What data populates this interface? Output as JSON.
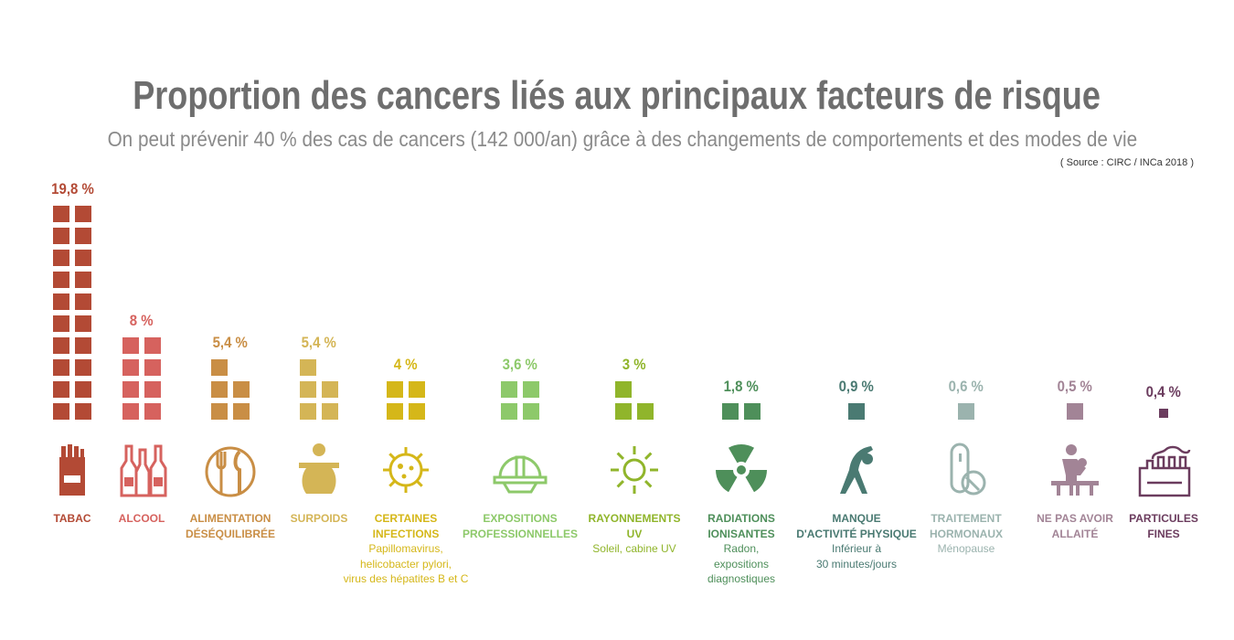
{
  "header": {
    "title": "Proportion des cancers liés aux principaux facteurs de risque",
    "subtitle": "On peut prévenir 40 % des cas de cancers (142 000/an) grâce à des changements de comportements et des modes de vie",
    "source": "( Source : CIRC / INCa 2018 )"
  },
  "chart_data": {
    "type": "bar",
    "title": "Proportion des cancers liés aux principaux facteurs de risque",
    "unit": "%",
    "categories": [
      "TABAC",
      "ALCOOL",
      "ALIMENTATION DÉSÉQUILIBRÉE",
      "SURPOIDS",
      "CERTAINES INFECTIONS",
      "EXPOSITIONS PROFESSIONNELLES",
      "RAYONNEMENTS UV",
      "RADIATIONS IONISANTES",
      "MANQUE D'ACTIVITÉ PHYSIQUE",
      "TRAITEMENT HORMONAUX",
      "NE PAS AVOIR ALLAITÉ",
      "PARTICULES FINES"
    ],
    "values": [
      19.8,
      8,
      5.4,
      5.4,
      4,
      3.6,
      3,
      1.8,
      0.9,
      0.6,
      0.5,
      0.4
    ],
    "items": [
      {
        "label": "TABAC",
        "sublabel": "",
        "value_label": "19,8 %",
        "value": 19.8,
        "color": "#b34a35",
        "icon": "cigarette-pack-icon"
      },
      {
        "label": "ALCOOL",
        "sublabel": "",
        "value_label": "8 %",
        "value": 8,
        "color": "#d6625e",
        "icon": "bottles-icon"
      },
      {
        "label": "ALIMENTATION\nDÉSÉQUILIBRÉE",
        "sublabel": "",
        "value_label": "5,4 %",
        "value": 5.4,
        "color": "#c98e45",
        "icon": "fork-knife-plate-icon"
      },
      {
        "label": "SURPOIDS",
        "sublabel": "",
        "value_label": "5,4 %",
        "value": 5.4,
        "color": "#d4b556",
        "icon": "overweight-person-icon"
      },
      {
        "label": "CERTAINES\nINFECTIONS",
        "sublabel": "Papillomavirus,\nhelicobacter pylori,\nvirus des hépatites B et C",
        "value_label": "4 %",
        "value": 4,
        "color": "#d5b719",
        "icon": "virus-icon"
      },
      {
        "label": "EXPOSITIONS\nPROFESSIONNELLES",
        "sublabel": "",
        "value_label": "3,6 %",
        "value": 3.6,
        "color": "#8dc96a",
        "icon": "hard-hat-icon"
      },
      {
        "label": "RAYONNEMENTS\nUV",
        "sublabel": "Soleil, cabine UV",
        "value_label": "3 %",
        "value": 3,
        "color": "#90b52b",
        "icon": "sun-icon"
      },
      {
        "label": "RADIATIONS\nIONISANTES",
        "sublabel": "Radon,\nexpositions\ndiagnostiques",
        "value_label": "1,8 %",
        "value": 1.8,
        "color": "#4e8f5a",
        "icon": "radiation-icon"
      },
      {
        "label": "MANQUE\nD'ACTIVITÉ PHYSIQUE",
        "sublabel": "Inférieur à\n30 minutes/jours",
        "value_label": "0,9 %",
        "value": 0.9,
        "color": "#4a7a72",
        "icon": "stretching-person-icon"
      },
      {
        "label": "TRAITEMENT\nHORMONAUX",
        "sublabel": "Ménopause",
        "value_label": "0,6 %",
        "value": 0.6,
        "color": "#9bb3ae",
        "icon": "pill-icon"
      },
      {
        "label": "NE PAS AVOIR\nALLAITÉ",
        "sublabel": "",
        "value_label": "0,5 %",
        "value": 0.5,
        "color": "#a28496",
        "icon": "breastfeeding-icon"
      },
      {
        "label": "PARTICULES\nFINES",
        "sublabel": "",
        "value_label": "0,4 %",
        "value": 0.4,
        "color": "#6b3c5e",
        "icon": "factory-icon"
      }
    ]
  }
}
